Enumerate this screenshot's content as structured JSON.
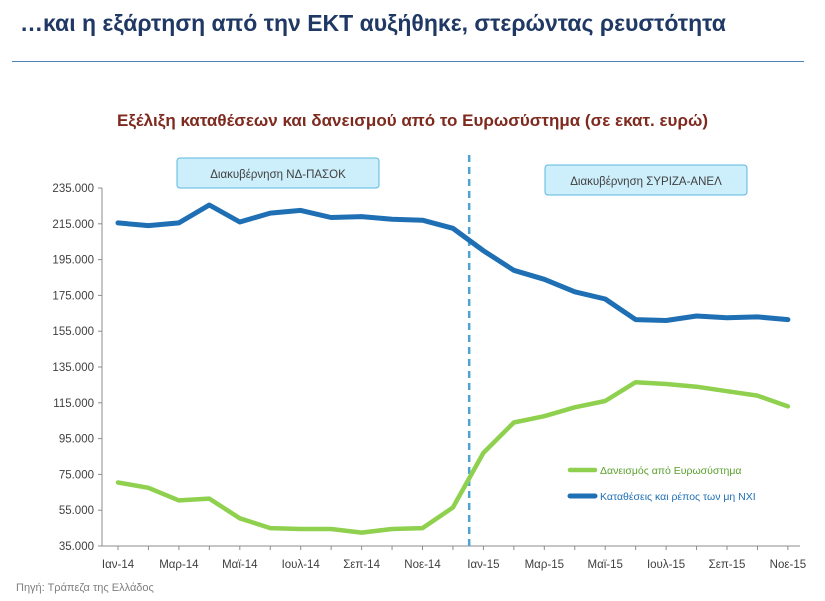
{
  "header": {
    "title": "…και η εξάρτηση από την ΕΚΤ αυξήθηκε, στερώντας ρευστότητα"
  },
  "source": "Πηγή: Τράπεζα της Ελλάδος",
  "colors": {
    "title": "#1f3864",
    "chart_title": "#7f2a1f",
    "deposits": "#1f6fb4",
    "eurosystem": "#8fd14f",
    "divider": "#4fa3d1",
    "callout_fill": "#cdeefb",
    "callout_border": "#5bb7e0"
  },
  "chart_data": {
    "type": "line",
    "title": "Εξέλιξη καταθέσεων και δανεισμού από το Ευρωσύστημα (σε εκατ. ευρώ)",
    "xlabel": "",
    "ylabel": "",
    "ylim": [
      35000,
      235000
    ],
    "y_ticks": [
      "35.000",
      "55.000",
      "75.000",
      "95.000",
      "115.000",
      "135.000",
      "155.000",
      "175.000",
      "195.000",
      "215.000",
      "235.000"
    ],
    "x": [
      "Ιαν-14",
      "Φεβ-14",
      "Μαρ-14",
      "Απρ-14",
      "Μαϊ-14",
      "Ιουν-14",
      "Ιουλ-14",
      "Αυγ-14",
      "Σεπ-14",
      "Οκτ-14",
      "Νοε-14",
      "Δεκ-14",
      "Ιαν-15",
      "Φεβ-15",
      "Μαρ-15",
      "Απρ-15",
      "Μαϊ-15",
      "Ιουν-15",
      "Ιουλ-15",
      "Αυγ-15",
      "Σεπ-15",
      "Οκτ-15",
      "Νοε-15"
    ],
    "x_tick_labels": [
      "Ιαν-14",
      "Μαρ-14",
      "Μαϊ-14",
      "Ιουλ-14",
      "Σεπ-14",
      "Νοε-14",
      "Ιαν-15",
      "Μαρ-15",
      "Μαϊ-15",
      "Ιουλ-15",
      "Σεπ-15",
      "Νοε-15"
    ],
    "legend_position": "right",
    "series": [
      {
        "name": "Καταθέσεις και ρέπος των μη ΝΧΙ",
        "key": "deposits",
        "values": [
          215500,
          214000,
          215500,
          225500,
          216000,
          221000,
          222500,
          218500,
          219000,
          217500,
          217000,
          212500,
          200000,
          189000,
          184000,
          177000,
          173000,
          161500,
          161000,
          163500,
          162500,
          163000,
          161500
        ]
      },
      {
        "name": "Δανεισμός από Ευρωσύστημα",
        "key": "eurosystem",
        "values": [
          70500,
          67500,
          60500,
          61500,
          50500,
          45000,
          44500,
          44500,
          42500,
          44500,
          45000,
          56500,
          87000,
          104000,
          107500,
          112500,
          116000,
          126500,
          125500,
          124000,
          121500,
          119000,
          113000
        ]
      }
    ],
    "divider_after_index": 12,
    "annotations": [
      {
        "text": "Διακυβέρνηση ΝΔ-ΠΑΣΟΚ"
      },
      {
        "text": "Διακυβέρνηση ΣΥΡΙΖΑ-ΑΝΕΛ"
      }
    ]
  }
}
